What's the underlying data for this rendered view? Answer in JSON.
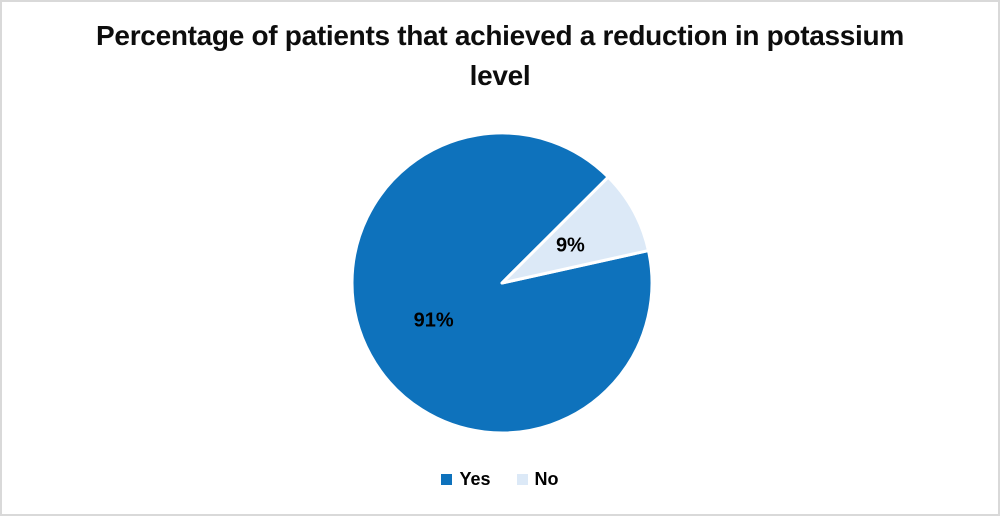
{
  "chart_data": {
    "type": "pie",
    "title": "Percentage of patients that achieved a reduction in potassium level",
    "slices": [
      {
        "label": "Yes",
        "value": 91,
        "data_label": "91%",
        "color": "#0e72bc"
      },
      {
        "label": "No",
        "value": 9,
        "data_label": "9%",
        "color": "#dce9f7"
      }
    ],
    "start_angle_deg": 77.5,
    "legend_position": "bottom",
    "legend": [
      "Yes",
      "No"
    ],
    "slice_border_color": "#ffffff",
    "background_color": "#ffffff",
    "frame_border_color": "#d9d9d9"
  }
}
